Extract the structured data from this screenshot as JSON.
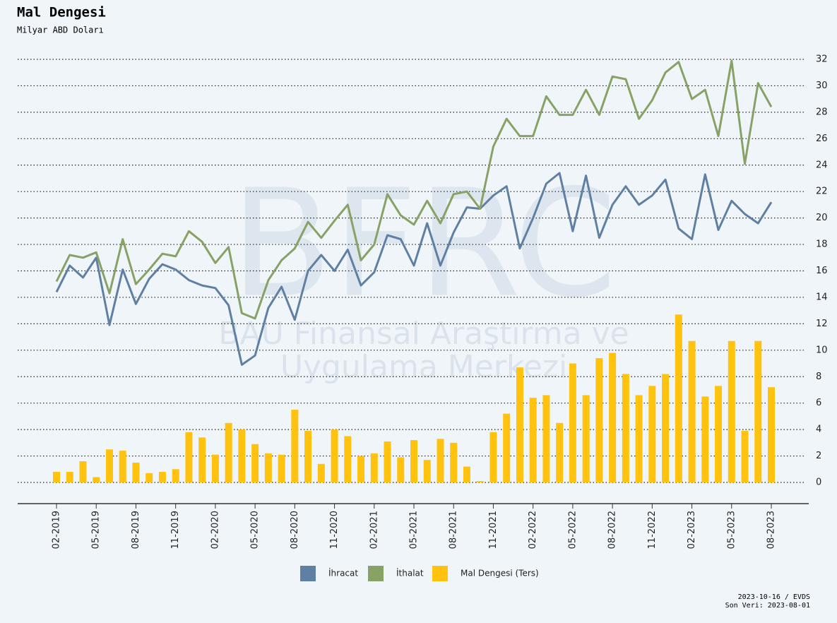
{
  "chart_data": {
    "type": "combo",
    "title": "Mal Dengesi",
    "subtitle": "Milyar ABD Doları",
    "watermark": [
      "BFRC",
      "BAU Finansal Araştırma ve",
      "Uygulama Merkezi"
    ],
    "footer": [
      "2023-10-16 / EVDS",
      "Son Veri: 2023-08-01"
    ],
    "categories": [
      "02-2019",
      null,
      null,
      "05-2019",
      null,
      null,
      "08-2019",
      null,
      null,
      "11-2019",
      null,
      null,
      "02-2020",
      null,
      null,
      "05-2020",
      null,
      null,
      "08-2020",
      null,
      null,
      "11-2020",
      null,
      null,
      "02-2021",
      null,
      null,
      "05-2021",
      null,
      null,
      "08-2021",
      null,
      null,
      "11-2021",
      null,
      null,
      "02-2022",
      null,
      null,
      "05-2022",
      null,
      null,
      "08-2022",
      null,
      null,
      "11-2022",
      null,
      null,
      "02-2023",
      null,
      null,
      "05-2023",
      null,
      null,
      "08-2023"
    ],
    "series": [
      {
        "name": "İhracat",
        "type": "line",
        "color": "#5f80a2",
        "values": [
          14.4,
          16.4,
          15.5,
          17.0,
          11.9,
          16.1,
          13.5,
          15.4,
          16.5,
          16.1,
          15.3,
          14.9,
          14.7,
          13.4,
          8.9,
          9.6,
          13.2,
          14.8,
          12.3,
          16.0,
          17.2,
          16.0,
          17.6,
          14.9,
          15.9,
          18.7,
          18.4,
          16.4,
          19.6,
          16.4,
          18.9,
          20.8,
          20.7,
          21.7,
          22.4,
          17.7,
          20.0,
          22.6,
          23.4,
          19.0,
          23.2,
          18.5,
          21.0,
          22.4,
          21.0,
          21.7,
          22.9,
          19.2,
          18.4,
          23.3,
          19.1,
          21.3,
          20.3,
          19.6,
          21.2
        ]
      },
      {
        "name": "İthalat",
        "type": "line",
        "color": "#88a266",
        "values": [
          15.2,
          17.2,
          17.0,
          17.4,
          14.3,
          18.4,
          15.0,
          16.1,
          17.3,
          17.1,
          19.0,
          18.2,
          16.6,
          17.8,
          12.8,
          12.4,
          15.3,
          16.8,
          17.7,
          19.7,
          18.5,
          19.8,
          21.0,
          16.8,
          18.0,
          21.8,
          20.2,
          19.5,
          21.3,
          19.6,
          21.8,
          22.0,
          20.7,
          25.4,
          27.5,
          26.2,
          26.2,
          29.2,
          27.8,
          27.8,
          29.7,
          27.8,
          30.7,
          30.5,
          27.5,
          28.9,
          31.0,
          31.8,
          29.0,
          29.7,
          26.2,
          31.9,
          24.1,
          30.2,
          28.4
        ]
      },
      {
        "name": "Mal Dengesi (Ters)",
        "type": "bar",
        "color": "#ffc20e",
        "values": [
          0.8,
          0.8,
          1.6,
          0.4,
          2.5,
          2.4,
          1.5,
          0.7,
          0.8,
          1.0,
          3.8,
          3.4,
          2.1,
          4.5,
          4.0,
          2.9,
          2.2,
          2.1,
          5.5,
          3.9,
          1.4,
          4.0,
          3.5,
          2.0,
          2.2,
          3.1,
          1.9,
          3.2,
          1.7,
          3.3,
          3.0,
          1.2,
          0.1,
          3.8,
          5.2,
          8.7,
          6.4,
          6.6,
          4.5,
          9.0,
          6.6,
          9.4,
          9.8,
          8.2,
          6.6,
          7.3,
          8.2,
          12.7,
          10.7,
          6.5,
          7.3,
          10.7,
          3.9,
          10.7,
          7.2
        ]
      }
    ],
    "ylim": [
      -1.6,
      32.5
    ],
    "yticks": [
      0,
      2,
      4,
      6,
      8,
      10,
      12,
      14,
      16,
      18,
      20,
      22,
      24,
      26,
      28,
      30,
      32
    ],
    "grid": true,
    "legend": "bottom"
  }
}
